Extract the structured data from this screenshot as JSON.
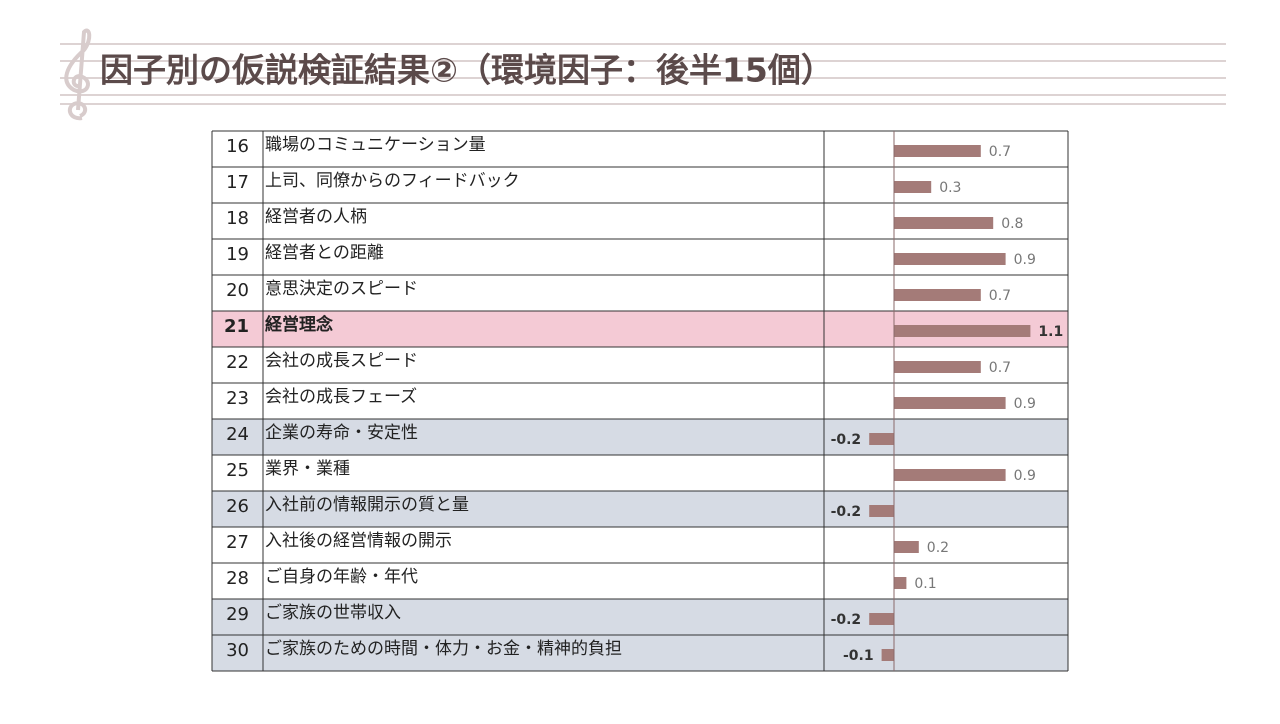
{
  "header": {
    "title": "因子別の仮説検証結果②（環境因子：後半15個）"
  },
  "table": {
    "bar_color": "#a47b78",
    "zero_line_color": "#8a6a6a",
    "rows": [
      {
        "no": 16,
        "label": "職場のコミュニケーション量",
        "value": 0.7,
        "color": "#ffffff"
      },
      {
        "no": 17,
        "label": "上司、同僚からのフィードバック",
        "value": 0.3,
        "color": "#ffffff"
      },
      {
        "no": 18,
        "label": "経営者の人柄",
        "value": 0.8,
        "color": "#ffffff"
      },
      {
        "no": 19,
        "label": "経営者との距離",
        "value": 0.9,
        "color": "#ffffff"
      },
      {
        "no": 20,
        "label": "意思決定のスピード",
        "value": 0.7,
        "color": "#ffffff"
      },
      {
        "no": 21,
        "label": "経営理念",
        "value": 1.1,
        "color": "#f4cad5",
        "bold": true
      },
      {
        "no": 22,
        "label": "会社の成長スピード",
        "value": 0.7,
        "color": "#ffffff"
      },
      {
        "no": 23,
        "label": "会社の成長フェーズ",
        "value": 0.9,
        "color": "#ffffff"
      },
      {
        "no": 24,
        "label": "企業の寿命・安定性",
        "value": -0.2,
        "color": "#d6dbe4"
      },
      {
        "no": 25,
        "label": "業界・業種",
        "value": 0.9,
        "color": "#ffffff"
      },
      {
        "no": 26,
        "label": "入社前の情報開示の質と量",
        "value": -0.2,
        "color": "#d6dbe4"
      },
      {
        "no": 27,
        "label": "入社後の経営情報の開示",
        "value": 0.2,
        "color": "#ffffff"
      },
      {
        "no": 28,
        "label": "ご自身の年齢・年代",
        "value": 0.1,
        "color": "#ffffff"
      },
      {
        "no": 29,
        "label": "ご家族の世帯収入",
        "value": -0.2,
        "color": "#d6dbe4"
      },
      {
        "no": 30,
        "label": "ご家族のための時間・体力・お金・精神的負担",
        "value": -0.1,
        "color": "#d6dbe4"
      }
    ]
  }
}
